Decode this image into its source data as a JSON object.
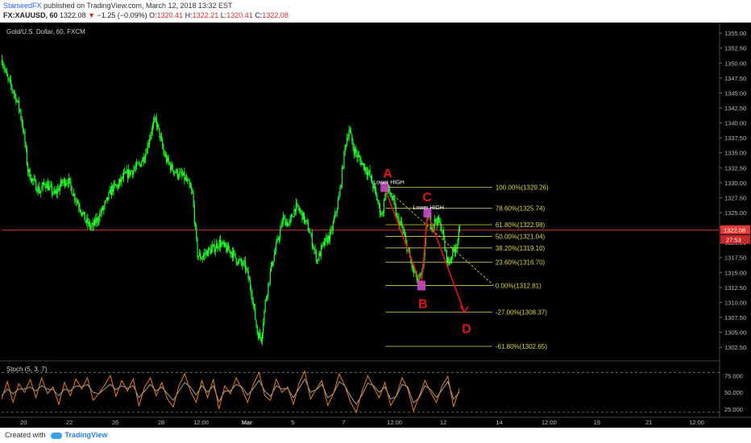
{
  "header": {
    "author": "StarseedFX",
    "published": "published on TradingView.com, March 12, 2018 13:32 EST",
    "symbol": "FX:XAUUSD, 60",
    "last": "1322.08",
    "change_arrow": "▼",
    "change": "−1.25 (−0.09%)",
    "o_label": "O:",
    "o": "1320.41",
    "h_label": "H:",
    "h": "1322.21",
    "l_label": "L:",
    "l": "1320.41",
    "c_label": "C:",
    "c": "1322.08"
  },
  "chart_data": [
    {
      "type": "candlestick",
      "title": "Gold/U.S. Dollar, 60, FXCM",
      "ylim": [
        1300.5,
        1356.5
      ],
      "y_ticks": [
        "1355.00",
        "1352.50",
        "1350.00",
        "1347.50",
        "1345.00",
        "1342.50",
        "1340.00",
        "1337.50",
        "1335.00",
        "1332.50",
        "1330.00",
        "1327.50",
        "1325.00",
        "1322.50",
        "1320.00",
        "1317.50",
        "1315.00",
        "1312.50",
        "1310.00",
        "1307.50",
        "1305.00",
        "1302.50"
      ],
      "price_anchors": [
        {
          "t": 0,
          "p": 1350.6
        },
        {
          "t": 5,
          "p": 1347.5
        },
        {
          "t": 10,
          "p": 1345.8
        },
        {
          "t": 14,
          "p": 1344.2
        },
        {
          "t": 18,
          "p": 1342.0
        },
        {
          "t": 22,
          "p": 1338.0
        },
        {
          "t": 26,
          "p": 1332.0
        },
        {
          "t": 30,
          "p": 1330.5
        },
        {
          "t": 34,
          "p": 1329.5
        },
        {
          "t": 38,
          "p": 1328.5
        },
        {
          "t": 43,
          "p": 1330.0
        },
        {
          "t": 48,
          "p": 1329.0
        },
        {
          "t": 53,
          "p": 1328.0
        },
        {
          "t": 60,
          "p": 1330.0
        },
        {
          "t": 66,
          "p": 1330.5
        },
        {
          "t": 72,
          "p": 1328.0
        },
        {
          "t": 78,
          "p": 1326.0
        },
        {
          "t": 84,
          "p": 1323.5
        },
        {
          "t": 90,
          "p": 1322.5
        },
        {
          "t": 96,
          "p": 1324.0
        },
        {
          "t": 104,
          "p": 1326.5
        },
        {
          "t": 110,
          "p": 1329.0
        },
        {
          "t": 116,
          "p": 1329.5
        },
        {
          "t": 122,
          "p": 1331.0
        },
        {
          "t": 130,
          "p": 1332.0
        },
        {
          "t": 138,
          "p": 1333.0
        },
        {
          "t": 144,
          "p": 1335.0
        },
        {
          "t": 150,
          "p": 1339.0
        },
        {
          "t": 154,
          "p": 1340.5
        },
        {
          "t": 158,
          "p": 1338.0
        },
        {
          "t": 162,
          "p": 1335.0
        },
        {
          "t": 166,
          "p": 1333.5
        },
        {
          "t": 170,
          "p": 1332.5
        },
        {
          "t": 176,
          "p": 1331.5
        },
        {
          "t": 182,
          "p": 1331.0
        },
        {
          "t": 186,
          "p": 1330.0
        },
        {
          "t": 191,
          "p": 1328.0
        },
        {
          "t": 196,
          "p": 1318.0
        },
        {
          "t": 200,
          "p": 1317.5
        },
        {
          "t": 206,
          "p": 1318.5
        },
        {
          "t": 212,
          "p": 1319.0
        },
        {
          "t": 218,
          "p": 1320.0
        },
        {
          "t": 224,
          "p": 1319.0
        },
        {
          "t": 230,
          "p": 1318.5
        },
        {
          "t": 236,
          "p": 1317.0
        },
        {
          "t": 244,
          "p": 1316.0
        },
        {
          "t": 250,
          "p": 1312.0
        },
        {
          "t": 256,
          "p": 1305.0
        },
        {
          "t": 260,
          "p": 1304.0
        },
        {
          "t": 264,
          "p": 1310.0
        },
        {
          "t": 270,
          "p": 1316.0
        },
        {
          "t": 276,
          "p": 1320.0
        },
        {
          "t": 282,
          "p": 1324.0
        },
        {
          "t": 288,
          "p": 1323.0
        },
        {
          "t": 294,
          "p": 1326.0
        },
        {
          "t": 300,
          "p": 1325.0
        },
        {
          "t": 308,
          "p": 1322.0
        },
        {
          "t": 316,
          "p": 1317.0
        },
        {
          "t": 322,
          "p": 1319.5
        },
        {
          "t": 330,
          "p": 1321.5
        },
        {
          "t": 338,
          "p": 1327.5
        },
        {
          "t": 344,
          "p": 1336.0
        },
        {
          "t": 348,
          "p": 1339.0
        },
        {
          "t": 352,
          "p": 1336.0
        },
        {
          "t": 356,
          "p": 1334.5
        },
        {
          "t": 362,
          "p": 1333.0
        },
        {
          "t": 368,
          "p": 1331.5
        },
        {
          "t": 374,
          "p": 1328.5
        },
        {
          "t": 378,
          "p": 1326.0
        },
        {
          "t": 381,
          "p": 1324.5
        },
        {
          "t": 384,
          "p": 1328.0
        },
        {
          "t": 387,
          "p": 1329.0
        },
        {
          "t": 393,
          "p": 1326.5
        },
        {
          "t": 396,
          "p": 1324.0
        },
        {
          "t": 400,
          "p": 1323.0
        },
        {
          "t": 405,
          "p": 1320.0
        },
        {
          "t": 411,
          "p": 1316.0
        },
        {
          "t": 417,
          "p": 1313.5
        },
        {
          "t": 421,
          "p": 1314.5
        },
        {
          "t": 424,
          "p": 1320.0
        },
        {
          "t": 427,
          "p": 1325.0
        },
        {
          "t": 431,
          "p": 1323.0
        },
        {
          "t": 436,
          "p": 1323.8
        },
        {
          "t": 441,
          "p": 1322.5
        },
        {
          "t": 445,
          "p": 1318.0
        },
        {
          "t": 448,
          "p": 1316.5
        },
        {
          "t": 451,
          "p": 1318.0
        },
        {
          "t": 456,
          "p": 1319.8
        },
        {
          "t": 459,
          "p": 1322.1
        }
      ],
      "last_price": "1322.08",
      "last_badge": "27:53",
      "x_ticks": [
        {
          "label": "20",
          "t": 22
        },
        {
          "label": "22",
          "t": 68
        },
        {
          "label": "26",
          "t": 114
        },
        {
          "label": "28",
          "t": 160
        },
        {
          "label": "12:00",
          "t": 200
        },
        {
          "label": "Mar",
          "t": 246
        },
        {
          "label": "5",
          "t": 292
        },
        {
          "label": "7",
          "t": 343
        },
        {
          "label": "12:00",
          "t": 394
        },
        {
          "label": "12",
          "t": 443
        },
        {
          "label": "14",
          "t": 499
        },
        {
          "label": "12:00",
          "t": 549
        },
        {
          "label": "19",
          "t": 597
        },
        {
          "label": "21",
          "t": 649
        },
        {
          "label": "12:00",
          "t": 697
        }
      ],
      "fib_levels": [
        {
          "label": "100.00%(1329.26)",
          "p": 1329.26
        },
        {
          "label": "78.60%(1325.74)",
          "p": 1325.74
        },
        {
          "label": "61.80%(1322.98)",
          "p": 1322.98
        },
        {
          "label": "50.00%(1321.04)",
          "p": 1321.04
        },
        {
          "label": "38.20%(1319.10)",
          "p": 1319.1
        },
        {
          "label": "23.60%(1316.70)",
          "p": 1316.7
        },
        {
          "label": "0.00%(1312.81)",
          "p": 1312.81
        },
        {
          "label": "-27.00%(1308.37)",
          "p": 1308.37
        },
        {
          "label": "-61.80%(1302.65)",
          "p": 1302.65
        }
      ],
      "annotations": {
        "A": {
          "label": "A",
          "t": 384,
          "p": 1329.26,
          "note": "Lower HIGH"
        },
        "B": {
          "label": "B",
          "t": 421,
          "p": 1312.81
        },
        "C": {
          "label": "C",
          "t": 427,
          "p": 1325.0,
          "note": "Lower HIGH"
        },
        "D": {
          "label": "D",
          "t": 464,
          "p": 1308.37
        }
      },
      "colors": {
        "background": "#000000",
        "candle": "#26ff2a",
        "fib": "#d8d84a",
        "pattern": "#e0161b",
        "marker": "#c44bc4",
        "price_line": "#e53935",
        "axis_text": "#bdbdbd"
      }
    },
    {
      "type": "line",
      "title": "Stoch (5, 3, 7)",
      "ylim": [
        15,
        95
      ],
      "y_ticks": [
        "75.000",
        "50.000",
        "25.000"
      ],
      "dashed_levels": [
        80,
        20
      ],
      "series": [
        {
          "color": "#e67e22",
          "values": [
            40,
            66,
            35,
            63,
            50,
            69,
            42,
            72,
            48,
            58,
            32,
            65,
            45,
            70,
            55,
            72,
            38,
            48,
            61,
            75,
            44,
            68,
            52,
            70,
            30,
            58,
            72,
            45,
            65,
            40,
            28,
            60,
            78,
            52,
            35,
            68,
            42,
            70,
            25,
            60,
            48,
            72,
            55,
            35,
            62,
            80,
            45,
            38,
            70,
            50,
            58,
            32,
            64,
            82,
            40,
            55,
            68,
            30,
            48,
            78,
            60,
            35,
            20,
            52,
            75,
            58,
            42,
            65,
            30,
            45,
            72,
            55,
            22,
            44,
            68,
            50,
            35,
            60,
            74,
            28,
            55
          ]
        },
        {
          "color": "#9e9e9e",
          "values": [
            45,
            55,
            48,
            55,
            55,
            58,
            52,
            60,
            55,
            54,
            45,
            55,
            52,
            60,
            58,
            62,
            50,
            48,
            55,
            62,
            54,
            60,
            56,
            60,
            42,
            52,
            62,
            52,
            58,
            48,
            38,
            52,
            65,
            58,
            46,
            60,
            50,
            60,
            36,
            52,
            52,
            62,
            58,
            46,
            56,
            68,
            52,
            44,
            60,
            55,
            56,
            42,
            56,
            70,
            50,
            54,
            62,
            42,
            48,
            66,
            60,
            44,
            32,
            46,
            64,
            60,
            50,
            58,
            40,
            44,
            62,
            58,
            34,
            42,
            60,
            54,
            42,
            54,
            66,
            40,
            50
          ]
        }
      ]
    }
  ],
  "footer": {
    "created": "Created with",
    "brand": "TradingView"
  }
}
